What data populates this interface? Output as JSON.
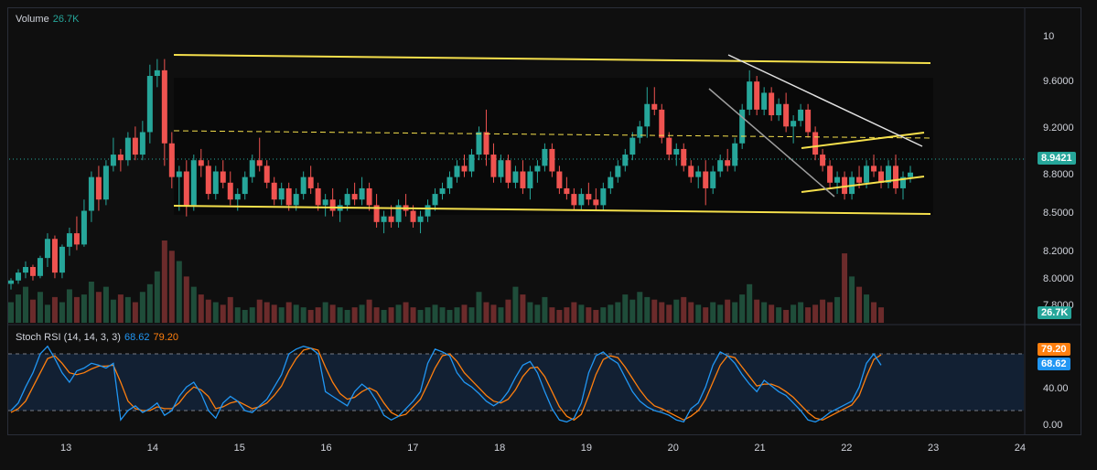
{
  "volume_panel": {
    "title": "Volume",
    "value": "26.7K",
    "badge": "26.7K"
  },
  "price_axis": {
    "ticks": [
      "10",
      "9.6000",
      "9.2000",
      "8.8000",
      "8.5000",
      "8.2000",
      "8.0000",
      "7.8000"
    ],
    "last_price": "8.9421"
  },
  "rsi_panel": {
    "title": "Stoch RSI (14, 14, 3, 3)",
    "k_value": "68.62",
    "d_value": "79.20",
    "ticks": [
      "40.00",
      "0.00"
    ],
    "badge_k": "68.62",
    "badge_d": "79.20"
  },
  "time_axis": {
    "ticks": [
      "13",
      "14",
      "15",
      "16",
      "17",
      "18",
      "19",
      "20",
      "21",
      "22",
      "23",
      "24"
    ]
  },
  "colors": {
    "up": "#26a69a",
    "down": "#ef5350",
    "channel": "#f5e04c",
    "trend": "#e0e0e0",
    "k_line": "#2196f3",
    "d_line": "#ff7f0e"
  },
  "chart_data": {
    "type": "candlestick",
    "ylim": [
      7.75,
      10.15
    ],
    "bars_per_day": 24,
    "candles": [
      [
        7.95,
        8.0,
        7.9,
        7.98
      ],
      [
        7.98,
        8.08,
        7.95,
        8.05
      ],
      [
        8.05,
        8.15,
        8.0,
        8.1
      ],
      [
        8.1,
        8.12,
        7.98,
        8.02
      ],
      [
        8.02,
        8.2,
        8.0,
        8.18
      ],
      [
        8.18,
        8.4,
        8.1,
        8.35
      ],
      [
        8.35,
        8.38,
        8.0,
        8.05
      ],
      [
        8.05,
        8.3,
        8.0,
        8.28
      ],
      [
        8.28,
        8.45,
        8.2,
        8.4
      ],
      [
        8.4,
        8.55,
        8.25,
        8.3
      ],
      [
        8.3,
        8.7,
        8.28,
        8.6
      ],
      [
        8.6,
        8.95,
        8.5,
        8.9
      ],
      [
        8.9,
        9.0,
        8.6,
        8.7
      ],
      [
        8.7,
        9.05,
        8.65,
        9.0
      ],
      [
        9.0,
        9.25,
        8.95,
        9.1
      ],
      [
        9.1,
        9.15,
        8.95,
        9.05
      ],
      [
        9.05,
        9.3,
        9.0,
        9.25
      ],
      [
        9.25,
        9.35,
        9.05,
        9.1
      ],
      [
        9.1,
        9.4,
        9.05,
        9.3
      ],
      [
        9.3,
        9.9,
        9.2,
        9.8
      ],
      [
        9.8,
        9.95,
        9.7,
        9.85
      ],
      [
        9.85,
        9.95,
        9.0,
        9.2
      ],
      [
        9.2,
        9.3,
        8.8,
        8.9
      ],
      [
        8.9,
        9.0,
        8.6,
        8.95
      ],
      [
        8.95,
        9.05,
        8.55,
        8.65
      ],
      [
        8.65,
        9.1,
        8.6,
        9.05
      ],
      [
        9.05,
        9.15,
        8.9,
        9.0
      ],
      [
        9.0,
        9.05,
        8.7,
        8.75
      ],
      [
        8.75,
        9.0,
        8.7,
        8.95
      ],
      [
        8.95,
        9.05,
        8.8,
        8.85
      ],
      [
        8.85,
        8.95,
        8.65,
        8.7
      ],
      [
        8.7,
        8.8,
        8.6,
        8.75
      ],
      [
        8.75,
        8.95,
        8.7,
        8.9
      ],
      [
        8.9,
        9.1,
        8.85,
        9.05
      ],
      [
        9.05,
        9.25,
        8.95,
        9.0
      ],
      [
        9.0,
        9.05,
        8.8,
        8.85
      ],
      [
        8.85,
        8.9,
        8.65,
        8.7
      ],
      [
        8.7,
        8.85,
        8.65,
        8.8
      ],
      [
        8.8,
        8.85,
        8.6,
        8.65
      ],
      [
        8.65,
        8.8,
        8.6,
        8.75
      ],
      [
        8.75,
        8.95,
        8.7,
        8.9
      ],
      [
        8.9,
        9.0,
        8.75,
        8.8
      ],
      [
        8.8,
        8.85,
        8.6,
        8.65
      ],
      [
        8.65,
        8.75,
        8.55,
        8.7
      ],
      [
        8.7,
        8.8,
        8.55,
        8.6
      ],
      [
        8.6,
        8.7,
        8.5,
        8.65
      ],
      [
        8.65,
        8.8,
        8.6,
        8.75
      ],
      [
        8.75,
        8.85,
        8.65,
        8.7
      ],
      [
        8.7,
        8.9,
        8.65,
        8.8
      ],
      [
        8.8,
        8.85,
        8.6,
        8.65
      ],
      [
        8.65,
        8.75,
        8.45,
        8.5
      ],
      [
        8.5,
        8.6,
        8.4,
        8.55
      ],
      [
        8.55,
        8.65,
        8.45,
        8.5
      ],
      [
        8.5,
        8.7,
        8.45,
        8.65
      ],
      [
        8.65,
        8.75,
        8.55,
        8.6
      ],
      [
        8.6,
        8.65,
        8.45,
        8.5
      ],
      [
        8.5,
        8.6,
        8.4,
        8.55
      ],
      [
        8.55,
        8.7,
        8.5,
        8.65
      ],
      [
        8.65,
        8.8,
        8.6,
        8.75
      ],
      [
        8.75,
        8.85,
        8.7,
        8.8
      ],
      [
        8.8,
        8.95,
        8.75,
        8.9
      ],
      [
        8.9,
        9.05,
        8.85,
        9.0
      ],
      [
        9.0,
        9.1,
        8.9,
        8.95
      ],
      [
        8.95,
        9.15,
        8.9,
        9.1
      ],
      [
        9.1,
        9.35,
        9.05,
        9.3
      ],
      [
        9.3,
        9.5,
        9.0,
        9.1
      ],
      [
        9.1,
        9.2,
        8.85,
        8.9
      ],
      [
        8.9,
        9.1,
        8.85,
        9.05
      ],
      [
        9.05,
        9.1,
        8.8,
        8.85
      ],
      [
        8.85,
        9.0,
        8.8,
        8.95
      ],
      [
        8.95,
        9.05,
        8.75,
        8.8
      ],
      [
        8.8,
        9.0,
        8.7,
        8.95
      ],
      [
        8.95,
        9.05,
        8.85,
        9.0
      ],
      [
        9.0,
        9.2,
        8.95,
        9.15
      ],
      [
        9.15,
        9.2,
        8.9,
        8.95
      ],
      [
        8.95,
        9.0,
        8.75,
        8.8
      ],
      [
        8.8,
        8.9,
        8.7,
        8.75
      ],
      [
        8.75,
        8.8,
        8.6,
        8.65
      ],
      [
        8.65,
        8.8,
        8.6,
        8.75
      ],
      [
        8.75,
        8.85,
        8.65,
        8.7
      ],
      [
        8.7,
        8.8,
        8.6,
        8.65
      ],
      [
        8.65,
        8.85,
        8.6,
        8.8
      ],
      [
        8.8,
        8.95,
        8.75,
        8.9
      ],
      [
        8.9,
        9.05,
        8.85,
        9.0
      ],
      [
        9.0,
        9.15,
        8.95,
        9.1
      ],
      [
        9.1,
        9.3,
        9.05,
        9.25
      ],
      [
        9.25,
        9.4,
        9.2,
        9.35
      ],
      [
        9.35,
        9.7,
        9.25,
        9.55
      ],
      [
        9.55,
        9.7,
        9.45,
        9.5
      ],
      [
        9.5,
        9.55,
        9.2,
        9.25
      ],
      [
        9.25,
        9.3,
        9.05,
        9.1
      ],
      [
        9.1,
        9.2,
        9.0,
        9.15
      ],
      [
        9.15,
        9.2,
        8.95,
        9.0
      ],
      [
        9.0,
        9.05,
        8.85,
        8.9
      ],
      [
        8.9,
        9.0,
        8.8,
        8.95
      ],
      [
        8.95,
        9.05,
        8.65,
        8.8
      ],
      [
        8.8,
        9.0,
        8.75,
        8.95
      ],
      [
        8.95,
        9.1,
        8.9,
        9.05
      ],
      [
        9.05,
        9.15,
        8.95,
        9.0
      ],
      [
        9.0,
        9.25,
        8.95,
        9.2
      ],
      [
        9.2,
        9.55,
        9.15,
        9.5
      ],
      [
        9.5,
        9.85,
        9.45,
        9.75
      ],
      [
        9.75,
        9.8,
        9.45,
        9.5
      ],
      [
        9.5,
        9.7,
        9.45,
        9.65
      ],
      [
        9.65,
        9.7,
        9.4,
        9.45
      ],
      [
        9.45,
        9.6,
        9.4,
        9.55
      ],
      [
        9.55,
        9.65,
        9.3,
        9.35
      ],
      [
        9.35,
        9.45,
        9.2,
        9.4
      ],
      [
        9.4,
        9.55,
        9.35,
        9.5
      ],
      [
        9.5,
        9.55,
        9.25,
        9.3
      ],
      [
        9.3,
        9.35,
        9.05,
        9.1
      ],
      [
        9.1,
        9.15,
        8.95,
        9.0
      ],
      [
        9.0,
        9.05,
        8.8,
        8.85
      ],
      [
        8.85,
        8.95,
        8.75,
        8.9
      ],
      [
        8.9,
        8.95,
        8.7,
        8.75
      ],
      [
        8.75,
        8.95,
        8.7,
        8.9
      ],
      [
        8.9,
        9.0,
        8.8,
        8.85
      ],
      [
        8.85,
        9.05,
        8.8,
        9.0
      ],
      [
        9.0,
        9.1,
        8.9,
        8.95
      ],
      [
        8.95,
        9.0,
        8.8,
        8.85
      ],
      [
        8.85,
        9.05,
        8.8,
        9.0
      ],
      [
        9.0,
        9.1,
        8.75,
        8.8
      ],
      [
        8.8,
        8.95,
        8.7,
        8.9
      ],
      [
        8.9,
        9.0,
        8.85,
        8.94
      ]
    ],
    "volume": [
      40,
      55,
      70,
      45,
      60,
      35,
      50,
      40,
      65,
      50,
      55,
      80,
      60,
      70,
      45,
      55,
      50,
      40,
      60,
      75,
      100,
      160,
      140,
      120,
      90,
      70,
      55,
      45,
      40,
      35,
      50,
      30,
      25,
      30,
      45,
      40,
      35,
      30,
      40,
      35,
      30,
      25,
      30,
      40,
      35,
      30,
      25,
      30,
      35,
      45,
      30,
      25,
      30,
      35,
      40,
      30,
      25,
      30,
      35,
      30,
      25,
      30,
      35,
      30,
      60,
      40,
      35,
      30,
      45,
      70,
      55,
      40,
      35,
      50,
      30,
      25,
      30,
      40,
      35,
      30,
      25,
      30,
      35,
      40,
      55,
      45,
      60,
      50,
      45,
      40,
      35,
      45,
      50,
      40,
      35,
      30,
      40,
      35,
      45,
      40,
      55,
      75,
      45,
      40,
      35,
      30,
      25,
      35,
      40,
      30,
      35,
      45,
      40,
      50,
      135,
      90,
      70,
      55,
      40,
      30
    ],
    "stoch_k": [
      20,
      28,
      45,
      60,
      80,
      88,
      75,
      60,
      50,
      62,
      65,
      70,
      68,
      65,
      70,
      10,
      20,
      25,
      18,
      22,
      28,
      15,
      20,
      35,
      45,
      50,
      38,
      20,
      12,
      28,
      35,
      30,
      20,
      18,
      25,
      32,
      45,
      58,
      80,
      85,
      88,
      86,
      80,
      40,
      35,
      30,
      25,
      40,
      48,
      42,
      30,
      15,
      10,
      14,
      22,
      30,
      40,
      70,
      85,
      82,
      78,
      60,
      50,
      45,
      38,
      30,
      25,
      30,
      40,
      55,
      68,
      72,
      60,
      40,
      22,
      10,
      8,
      12,
      28,
      60,
      78,
      82,
      75,
      70,
      55,
      40,
      30,
      24,
      20,
      18,
      15,
      10,
      8,
      22,
      28,
      45,
      68,
      82,
      78,
      70,
      58,
      48,
      40,
      52,
      46,
      40,
      36,
      28,
      20,
      10,
      8,
      12,
      18,
      22,
      26,
      30,
      45,
      70,
      80,
      68
    ],
    "stoch_d": [
      18,
      22,
      30,
      45,
      60,
      75,
      78,
      70,
      60,
      58,
      60,
      64,
      67,
      67,
      68,
      50,
      30,
      22,
      20,
      20,
      24,
      22,
      22,
      28,
      38,
      45,
      42,
      35,
      22,
      24,
      28,
      30,
      26,
      22,
      24,
      28,
      36,
      46,
      62,
      75,
      84,
      86,
      84,
      66,
      50,
      38,
      32,
      34,
      40,
      44,
      40,
      28,
      18,
      14,
      16,
      24,
      32,
      48,
      65,
      78,
      80,
      72,
      60,
      52,
      44,
      36,
      30,
      28,
      32,
      42,
      56,
      65,
      66,
      56,
      40,
      24,
      14,
      10,
      16,
      36,
      58,
      74,
      78,
      76,
      66,
      54,
      42,
      32,
      25,
      22,
      18,
      14,
      10,
      14,
      20,
      32,
      50,
      68,
      78,
      76,
      66,
      56,
      46,
      48,
      48,
      45,
      40,
      34,
      26,
      18,
      12,
      10,
      14,
      18,
      22,
      26,
      36,
      56,
      74,
      79
    ]
  }
}
